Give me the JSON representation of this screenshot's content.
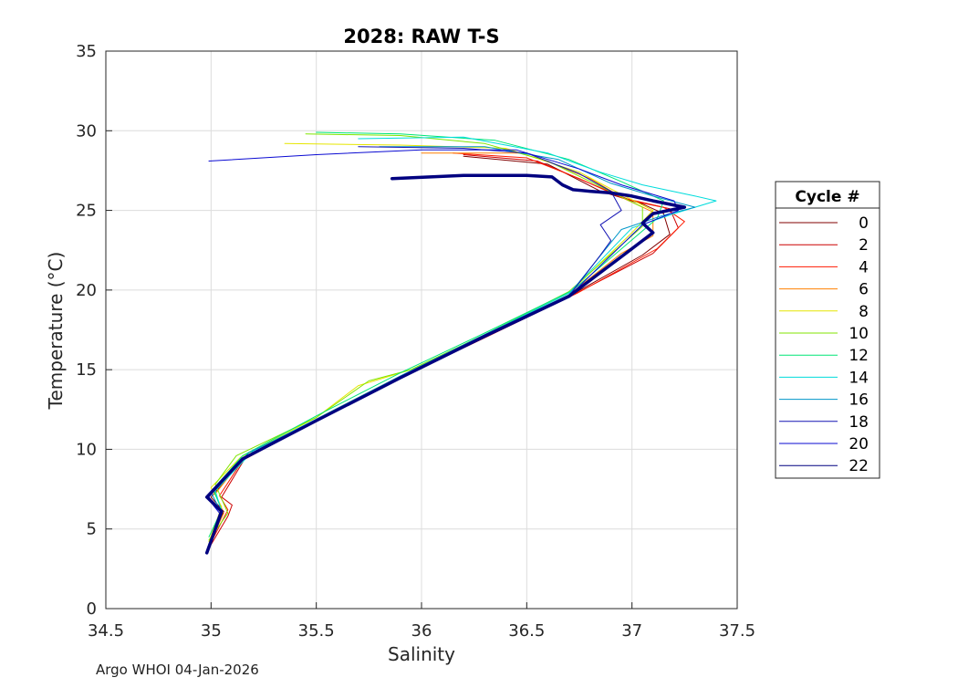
{
  "chart_data": {
    "type": "line",
    "title": "2028: RAW T-S",
    "xlabel": "Salinity",
    "ylabel": "Temperature (°C)",
    "xlim": [
      34.5,
      37.5
    ],
    "ylim": [
      0,
      35
    ],
    "xticks": [
      "34.5",
      "35",
      "35.5",
      "36",
      "36.5",
      "37",
      "37.5"
    ],
    "yticks": [
      "0",
      "5",
      "10",
      "15",
      "20",
      "25",
      "30",
      "35"
    ],
    "grid": true,
    "legend": {
      "title": "Cycle #",
      "placement": "right"
    },
    "series": [
      {
        "name": "0",
        "color": "#800000",
        "lw": 1,
        "points": [
          [
            36.2,
            28.4
          ],
          [
            36.6,
            27.9
          ],
          [
            36.85,
            26.2
          ],
          [
            37.05,
            25.4
          ],
          [
            37.15,
            24.8
          ],
          [
            37.18,
            23.5
          ],
          [
            37.05,
            22.2
          ],
          [
            36.7,
            19.6
          ],
          [
            36.3,
            17.1
          ],
          [
            35.9,
            14.6
          ],
          [
            35.5,
            11.9
          ],
          [
            35.15,
            9.3
          ],
          [
            35.0,
            7.0
          ],
          [
            35.06,
            6.1
          ],
          [
            34.98,
            3.6
          ]
        ]
      },
      {
        "name": "2",
        "color": "#cc0000",
        "lw": 1,
        "points": [
          [
            36.2,
            28.5
          ],
          [
            36.55,
            28.1
          ],
          [
            36.8,
            26.7
          ],
          [
            37.0,
            25.6
          ],
          [
            37.18,
            25.1
          ],
          [
            37.22,
            23.9
          ],
          [
            37.1,
            22.3
          ],
          [
            36.72,
            19.7
          ],
          [
            36.3,
            17.0
          ],
          [
            35.9,
            14.5
          ],
          [
            35.5,
            11.8
          ],
          [
            35.16,
            9.4
          ],
          [
            35.05,
            7.0
          ],
          [
            35.1,
            6.5
          ],
          [
            35.08,
            5.8
          ],
          [
            34.99,
            3.8
          ]
        ]
      },
      {
        "name": "4",
        "color": "#ff1a00",
        "lw": 1,
        "points": [
          [
            36.15,
            28.6
          ],
          [
            36.5,
            28.3
          ],
          [
            36.75,
            27.0
          ],
          [
            36.95,
            25.8
          ],
          [
            37.15,
            25.2
          ],
          [
            37.25,
            24.3
          ],
          [
            37.12,
            22.6
          ],
          [
            36.74,
            19.8
          ],
          [
            36.3,
            17.0
          ],
          [
            35.9,
            14.5
          ],
          [
            35.5,
            11.8
          ],
          [
            35.15,
            9.3
          ],
          [
            35.04,
            7.1
          ],
          [
            35.08,
            6.2
          ],
          [
            34.99,
            3.9
          ]
        ]
      },
      {
        "name": "6",
        "color": "#ff8000",
        "lw": 1,
        "points": [
          [
            36.0,
            28.6
          ],
          [
            36.5,
            28.6
          ],
          [
            36.8,
            27.0
          ],
          [
            36.97,
            25.7
          ],
          [
            37.1,
            24.9
          ],
          [
            37.1,
            23.4
          ],
          [
            36.95,
            22.3
          ],
          [
            36.7,
            19.7
          ],
          [
            36.3,
            17.1
          ],
          [
            35.9,
            14.6
          ],
          [
            35.5,
            11.9
          ],
          [
            35.15,
            9.4
          ],
          [
            35.02,
            7.2
          ],
          [
            35.06,
            6.0
          ],
          [
            34.99,
            4.0
          ]
        ]
      },
      {
        "name": "8",
        "color": "#e6e600",
        "lw": 1,
        "points": [
          [
            35.35,
            29.2
          ],
          [
            35.9,
            29.1
          ],
          [
            36.4,
            28.9
          ],
          [
            36.75,
            27.4
          ],
          [
            36.95,
            26.0
          ],
          [
            37.1,
            25.0
          ],
          [
            37.0,
            23.6
          ],
          [
            36.7,
            19.8
          ],
          [
            36.3,
            17.2
          ],
          [
            35.95,
            15.0
          ],
          [
            35.7,
            14.0
          ],
          [
            35.5,
            12.0
          ],
          [
            35.14,
            9.5
          ],
          [
            35.0,
            7.6
          ],
          [
            35.05,
            6.4
          ],
          [
            34.99,
            4.2
          ]
        ]
      },
      {
        "name": "10",
        "color": "#80e600",
        "lw": 1,
        "points": [
          [
            35.45,
            29.8
          ],
          [
            35.9,
            29.7
          ],
          [
            36.3,
            29.2
          ],
          [
            36.6,
            28.1
          ],
          [
            36.85,
            26.5
          ],
          [
            37.05,
            25.2
          ],
          [
            37.05,
            24.0
          ],
          [
            36.7,
            19.9
          ],
          [
            36.3,
            17.2
          ],
          [
            35.95,
            15.0
          ],
          [
            35.75,
            14.3
          ],
          [
            35.5,
            12.0
          ],
          [
            35.12,
            9.6
          ],
          [
            35.02,
            7.8
          ],
          [
            35.08,
            6.0
          ],
          [
            34.99,
            4.3
          ]
        ]
      },
      {
        "name": "12",
        "color": "#00e676",
        "lw": 1,
        "points": [
          [
            35.5,
            29.9
          ],
          [
            35.9,
            29.8
          ],
          [
            36.35,
            29.4
          ],
          [
            36.7,
            28.2
          ],
          [
            36.95,
            26.8
          ],
          [
            37.15,
            25.6
          ],
          [
            37.12,
            24.5
          ],
          [
            36.72,
            20.0
          ],
          [
            36.3,
            17.3
          ],
          [
            35.9,
            14.8
          ],
          [
            35.5,
            12.1
          ],
          [
            35.15,
            9.6
          ],
          [
            35.01,
            7.5
          ],
          [
            35.05,
            6.2
          ],
          [
            34.99,
            4.5
          ]
        ]
      },
      {
        "name": "14",
        "color": "#00dcdc",
        "lw": 1,
        "points": [
          [
            35.7,
            29.5
          ],
          [
            36.2,
            29.6
          ],
          [
            36.6,
            28.6
          ],
          [
            36.85,
            27.4
          ],
          [
            37.05,
            26.6
          ],
          [
            37.3,
            25.9
          ],
          [
            37.4,
            25.6
          ],
          [
            37.2,
            24.8
          ],
          [
            37.0,
            23.9
          ],
          [
            36.7,
            19.8
          ],
          [
            36.3,
            17.2
          ],
          [
            35.9,
            14.6
          ],
          [
            35.5,
            11.9
          ],
          [
            35.2,
            9.9
          ],
          [
            35.02,
            7.4
          ],
          [
            35.05,
            6.1
          ],
          [
            34.99,
            4.0
          ]
        ]
      },
      {
        "name": "16",
        "color": "#0096c8",
        "lw": 1,
        "points": [
          [
            35.8,
            29.0
          ],
          [
            36.3,
            29.0
          ],
          [
            36.65,
            28.2
          ],
          [
            36.9,
            26.7
          ],
          [
            37.1,
            25.9
          ],
          [
            37.3,
            25.2
          ],
          [
            37.15,
            24.7
          ],
          [
            36.95,
            23.8
          ],
          [
            36.7,
            19.7
          ],
          [
            36.3,
            17.2
          ],
          [
            35.9,
            14.6
          ],
          [
            35.5,
            11.8
          ],
          [
            35.18,
            9.8
          ],
          [
            35.0,
            7.3
          ],
          [
            35.05,
            6.0
          ],
          [
            34.99,
            3.8
          ]
        ]
      },
      {
        "name": "18",
        "color": "#1414b4",
        "lw": 1,
        "points": [
          [
            35.7,
            29.0
          ],
          [
            36.2,
            28.9
          ],
          [
            36.5,
            28.6
          ],
          [
            36.75,
            27.3
          ],
          [
            36.9,
            26.2
          ],
          [
            36.95,
            25.0
          ],
          [
            36.85,
            24.1
          ],
          [
            36.9,
            23.1
          ],
          [
            36.85,
            22.2
          ],
          [
            36.7,
            19.6
          ],
          [
            36.3,
            17.1
          ],
          [
            35.9,
            14.5
          ],
          [
            35.5,
            11.8
          ],
          [
            35.15,
            9.4
          ],
          [
            34.99,
            7.0
          ],
          [
            35.05,
            6.0
          ],
          [
            34.98,
            3.7
          ]
        ]
      },
      {
        "name": "20",
        "color": "#0a0ad2",
        "lw": 1,
        "points": [
          [
            34.99,
            28.1
          ],
          [
            35.5,
            28.5
          ],
          [
            36.0,
            28.8
          ],
          [
            36.45,
            28.8
          ],
          [
            36.75,
            27.6
          ],
          [
            36.95,
            26.6
          ],
          [
            37.2,
            25.6
          ],
          [
            37.22,
            25.0
          ],
          [
            37.05,
            24.1
          ],
          [
            36.7,
            19.6
          ],
          [
            36.3,
            17.1
          ],
          [
            35.9,
            14.5
          ],
          [
            35.5,
            11.8
          ],
          [
            35.15,
            9.4
          ],
          [
            34.98,
            7.0
          ],
          [
            35.04,
            6.0
          ],
          [
            34.98,
            3.6
          ]
        ]
      },
      {
        "name": "22",
        "color": "#000080",
        "lw": 3.5,
        "points": [
          [
            35.86,
            27.0
          ],
          [
            36.2,
            27.2
          ],
          [
            36.5,
            27.2
          ],
          [
            36.62,
            27.1
          ],
          [
            36.67,
            26.6
          ],
          [
            36.72,
            26.3
          ],
          [
            36.8,
            26.2
          ],
          [
            36.9,
            26.1
          ],
          [
            37.0,
            25.9
          ],
          [
            37.1,
            25.6
          ],
          [
            37.25,
            25.2
          ],
          [
            37.1,
            24.8
          ],
          [
            37.05,
            24.2
          ],
          [
            37.1,
            23.6
          ],
          [
            36.98,
            22.4
          ],
          [
            36.7,
            19.6
          ],
          [
            36.3,
            17.1
          ],
          [
            35.9,
            14.5
          ],
          [
            35.5,
            11.8
          ],
          [
            35.15,
            9.4
          ],
          [
            34.98,
            7.0
          ],
          [
            35.05,
            6.1
          ],
          [
            34.98,
            3.5
          ]
        ]
      }
    ]
  },
  "footer": "Argo WHOI 04-Jan-2026"
}
